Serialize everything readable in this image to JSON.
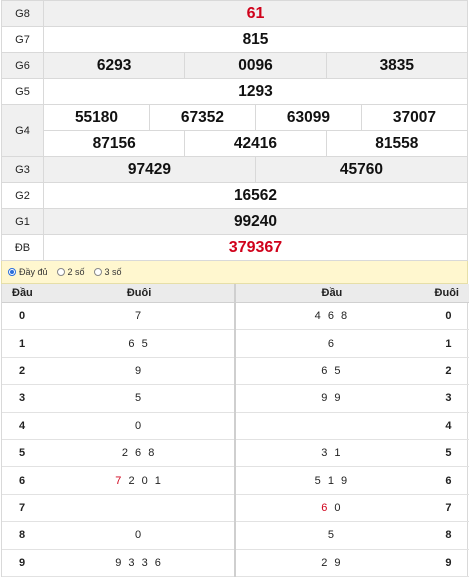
{
  "prizes": {
    "g8": {
      "label": "G8",
      "numbers": [
        "61"
      ]
    },
    "g7": {
      "label": "G7",
      "numbers": [
        "815"
      ]
    },
    "g6": {
      "label": "G6",
      "numbers": [
        "6293",
        "0096",
        "3835"
      ]
    },
    "g5": {
      "label": "G5",
      "numbers": [
        "1293"
      ]
    },
    "g4": {
      "label": "G4",
      "numbers": [
        "55180",
        "67352",
        "63099",
        "37007",
        "87156",
        "42416",
        "81558"
      ]
    },
    "g3": {
      "label": "G3",
      "numbers": [
        "97429",
        "45760"
      ]
    },
    "g2": {
      "label": "G2",
      "numbers": [
        "16562"
      ]
    },
    "g1": {
      "label": "G1",
      "numbers": [
        "99240"
      ]
    },
    "db": {
      "label": "ĐB",
      "numbers": [
        "379367"
      ]
    }
  },
  "highlight_color": "#d0021b",
  "options": [
    {
      "label": "Đầy đủ",
      "selected": true
    },
    {
      "label": "2 số",
      "selected": false
    },
    {
      "label": "3 số",
      "selected": false
    }
  ],
  "loto": {
    "headers": [
      "Đầu",
      "Đuôi",
      "Đầu",
      "Đuôi"
    ],
    "rows": [
      {
        "dau": "0",
        "duoi": "7",
        "dau2": "4 6 8",
        "duoi2": "0"
      },
      {
        "dau": "1",
        "duoi": "6 5",
        "dau2": "6",
        "duoi2": "1"
      },
      {
        "dau": "2",
        "duoi": "9",
        "dau2": "6 5",
        "duoi2": "2"
      },
      {
        "dau": "3",
        "duoi": "5",
        "dau2": "9 9",
        "duoi2": "3"
      },
      {
        "dau": "4",
        "duoi": "0",
        "dau2": "",
        "duoi2": "4"
      },
      {
        "dau": "5",
        "duoi": "2 6 8",
        "dau2": "3 1",
        "duoi2": "5"
      },
      {
        "dau": "6",
        "duoi_hl": "7",
        "duoi": "2 0 1",
        "dau2": "5 1 9",
        "duoi2": "6"
      },
      {
        "dau": "7",
        "duoi": "",
        "dau2_hl": "6",
        "dau2": "0",
        "duoi2": "7"
      },
      {
        "dau": "8",
        "duoi": "0",
        "dau2": "5",
        "duoi2": "8"
      },
      {
        "dau": "9",
        "duoi": "9 3 3 6",
        "dau2": "2 9",
        "duoi2": "9"
      }
    ]
  }
}
